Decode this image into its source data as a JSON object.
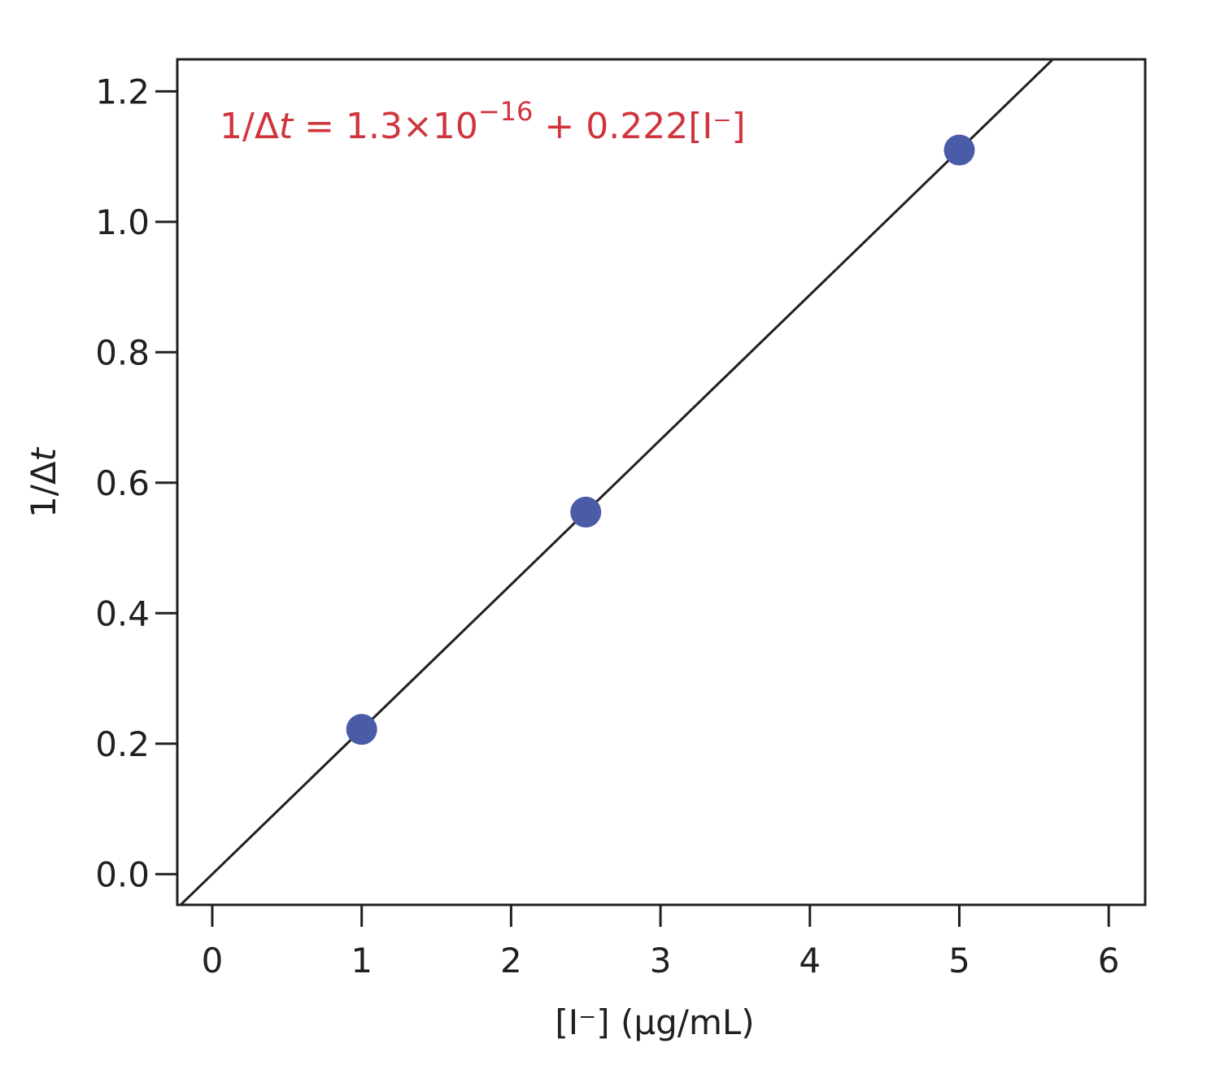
{
  "chart_data": {
    "type": "scatter",
    "annotation": {
      "parts": [
        "1/Δ",
        "t",
        " = 1.3×10",
        "−16",
        " + 0.222[I⁻]"
      ]
    },
    "xlabel": "[I⁻] (μg/mL)",
    "ylabel": {
      "parts": [
        "1/Δ",
        "t"
      ]
    },
    "x": [
      1,
      2.5,
      5
    ],
    "series": [
      {
        "color": "#4a5ba8",
        "values": [
          0.222,
          0.555,
          1.11
        ]
      }
    ],
    "fit": {
      "intercept": 1.3e-16,
      "slope": 0.222,
      "color": "#231f20"
    },
    "annotation_color": "#d0343c",
    "xlim": [
      -0.234,
      6.244
    ],
    "ylim": [
      -0.047,
      1.249
    ],
    "xticks": [
      0,
      1,
      2,
      3,
      4,
      5,
      6
    ],
    "yticks": [
      {
        "value": 0,
        "label": "0.0"
      },
      0.2,
      0.4,
      0.6,
      0.8,
      {
        "value": 1,
        "label": "1.0"
      },
      1.2
    ],
    "grid": false
  }
}
